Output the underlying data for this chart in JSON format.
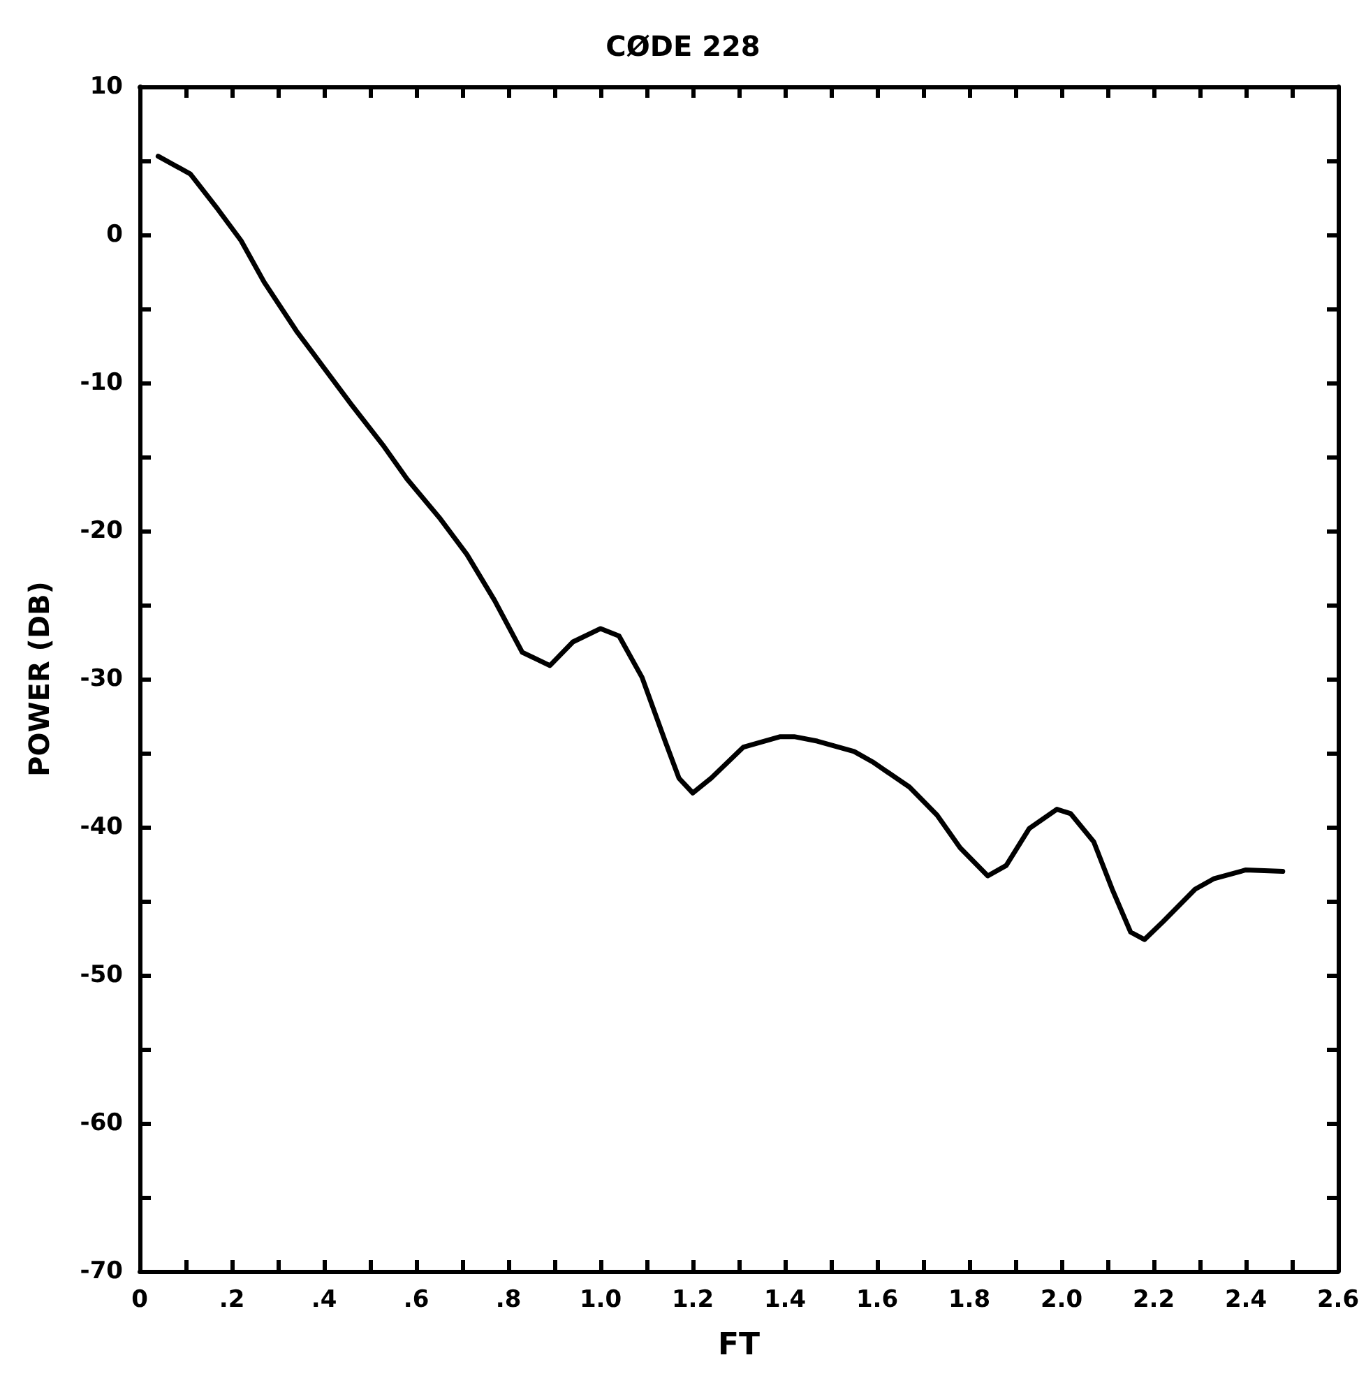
{
  "chart_data": {
    "type": "line",
    "title": "CØDE 228",
    "xlabel": "FT",
    "ylabel": "POWER (DB)",
    "x": [
      0.04,
      0.11,
      0.17,
      0.22,
      0.27,
      0.34,
      0.4,
      0.46,
      0.53,
      0.58,
      0.65,
      0.71,
      0.77,
      0.83,
      0.89,
      0.94,
      1.0,
      1.04,
      1.09,
      1.14,
      1.17,
      1.2,
      1.24,
      1.31,
      1.39,
      1.42,
      1.47,
      1.55,
      1.59,
      1.67,
      1.73,
      1.78,
      1.84,
      1.88,
      1.93,
      1.99,
      2.02,
      2.07,
      2.11,
      2.15,
      2.18,
      2.22,
      2.29,
      2.33,
      2.4,
      2.48
    ],
    "series": [
      {
        "color": "#000000",
        "values": [
          5.3,
          4.1,
          1.7,
          -0.4,
          -3.2,
          -6.5,
          -9.0,
          -11.5,
          -14.3,
          -16.5,
          -19.1,
          -21.6,
          -24.7,
          -28.2,
          -29.1,
          -27.5,
          -26.6,
          -27.1,
          -29.9,
          -34.2,
          -36.7,
          -37.7,
          -36.7,
          -34.6,
          -33.9,
          -33.9,
          -34.2,
          -34.9,
          -35.6,
          -37.3,
          -39.2,
          -41.4,
          -43.3,
          -42.6,
          -40.1,
          -38.8,
          -39.1,
          -41.0,
          -44.2,
          -47.1,
          -47.6,
          -46.4,
          -44.2,
          -43.5,
          -42.9,
          -43.0
        ]
      }
    ],
    "xlim": [
      0,
      2.6
    ],
    "xticks": [
      0,
      {
        "value": 0.1,
        "label": null
      },
      {
        "value": 0.2,
        "label": ".2"
      },
      {
        "value": 0.3,
        "label": null
      },
      {
        "value": 0.4,
        "label": ".4"
      },
      {
        "value": 0.5,
        "label": null
      },
      {
        "value": 0.6,
        "label": ".6"
      },
      {
        "value": 0.7,
        "label": null
      },
      {
        "value": 0.8,
        "label": ".8"
      },
      {
        "value": 0.9,
        "label": null
      },
      {
        "value": 1,
        "label": "1.0"
      },
      {
        "value": 1.1,
        "label": null
      },
      {
        "value": 1.2,
        "label": "1.2"
      },
      {
        "value": 1.3,
        "label": null
      },
      {
        "value": 1.4,
        "label": "1.4"
      },
      {
        "value": 1.5,
        "label": null
      },
      {
        "value": 1.6,
        "label": "1.6"
      },
      {
        "value": 1.7,
        "label": null
      },
      {
        "value": 1.8,
        "label": "1.8"
      },
      {
        "value": 1.9,
        "label": null
      },
      {
        "value": 2,
        "label": "2.0"
      },
      {
        "value": 2.1,
        "label": null
      },
      {
        "value": 2.2,
        "label": "2.2"
      },
      {
        "value": 2.3,
        "label": null
      },
      {
        "value": 2.4,
        "label": "2.4"
      },
      {
        "value": 2.5,
        "label": null
      },
      {
        "value": 2.6,
        "label": "2.6"
      }
    ],
    "ylim": [
      -70,
      10
    ],
    "yticks": [
      -70,
      {
        "value": -65,
        "label": null
      },
      -60,
      {
        "value": -55,
        "label": null
      },
      -50,
      {
        "value": -45,
        "label": null
      },
      -40,
      {
        "value": -35,
        "label": null
      },
      -30,
      {
        "value": -25,
        "label": null
      },
      -20,
      {
        "value": -15,
        "label": null
      },
      -10,
      {
        "value": -5,
        "label": null
      },
      0,
      {
        "value": 5,
        "label": null
      },
      10
    ],
    "marker": "none",
    "line_style": "solid"
  }
}
